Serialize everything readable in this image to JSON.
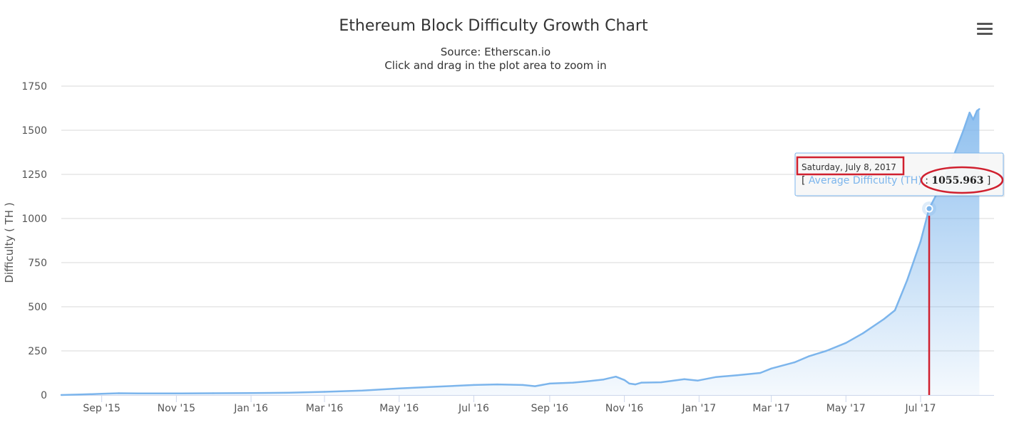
{
  "chart_data": {
    "type": "area",
    "title": "Ethereum Block Difficulty Growth Chart",
    "subtitle_lines": [
      "Source: Etherscan.io",
      "Click and drag in the plot area to zoom in"
    ],
    "ylabel": "Difficulty ( TH )",
    "xlabel": "",
    "x_range": [
      "2015-07-30",
      "2017-08-30"
    ],
    "ylim": [
      0,
      1750
    ],
    "y_ticks": [
      0,
      250,
      500,
      750,
      1000,
      1250,
      1500,
      1750
    ],
    "x_ticks": [
      {
        "date": "2015-09-01",
        "label": "Sep '15"
      },
      {
        "date": "2015-11-01",
        "label": "Nov '15"
      },
      {
        "date": "2016-01-01",
        "label": "Jan '16"
      },
      {
        "date": "2016-03-01",
        "label": "Mar '16"
      },
      {
        "date": "2016-05-01",
        "label": "May '16"
      },
      {
        "date": "2016-07-01",
        "label": "Jul '16"
      },
      {
        "date": "2016-09-01",
        "label": "Sep '16"
      },
      {
        "date": "2016-11-01",
        "label": "Nov '16"
      },
      {
        "date": "2017-01-01",
        "label": "Jan '17"
      },
      {
        "date": "2017-03-01",
        "label": "Mar '17"
      },
      {
        "date": "2017-05-01",
        "label": "May '17"
      },
      {
        "date": "2017-07-01",
        "label": "Jul '17"
      }
    ],
    "grid": true,
    "legend": "none",
    "series": [
      {
        "name": "Average Difficulty (TH)",
        "color": "#7cb5ec",
        "points": [
          [
            "2015-07-30",
            0
          ],
          [
            "2015-08-15",
            3
          ],
          [
            "2015-09-01",
            7
          ],
          [
            "2015-09-15",
            10
          ],
          [
            "2015-10-01",
            9
          ],
          [
            "2015-11-01",
            9
          ],
          [
            "2015-12-01",
            10
          ],
          [
            "2016-01-01",
            11
          ],
          [
            "2016-02-01",
            13
          ],
          [
            "2016-03-01",
            18
          ],
          [
            "2016-04-01",
            25
          ],
          [
            "2016-05-01",
            37
          ],
          [
            "2016-06-01",
            47
          ],
          [
            "2016-07-01",
            57
          ],
          [
            "2016-07-20",
            60
          ],
          [
            "2016-08-10",
            57
          ],
          [
            "2016-08-20",
            50
          ],
          [
            "2016-09-01",
            65
          ],
          [
            "2016-09-20",
            70
          ],
          [
            "2016-10-01",
            77
          ],
          [
            "2016-10-15",
            88
          ],
          [
            "2016-10-25",
            104
          ],
          [
            "2016-11-01",
            85
          ],
          [
            "2016-11-05",
            65
          ],
          [
            "2016-11-10",
            60
          ],
          [
            "2016-11-15",
            70
          ],
          [
            "2016-12-01",
            72
          ],
          [
            "2016-12-20",
            90
          ],
          [
            "2016-12-31",
            82
          ],
          [
            "2017-01-15",
            102
          ],
          [
            "2017-02-01",
            112
          ],
          [
            "2017-02-20",
            125
          ],
          [
            "2017-03-01",
            150
          ],
          [
            "2017-03-20",
            185
          ],
          [
            "2017-04-01",
            220
          ],
          [
            "2017-04-15",
            250
          ],
          [
            "2017-05-01",
            295
          ],
          [
            "2017-05-15",
            350
          ],
          [
            "2017-06-01",
            430
          ],
          [
            "2017-06-10",
            480
          ],
          [
            "2017-06-20",
            650
          ],
          [
            "2017-07-01",
            870
          ],
          [
            "2017-07-08",
            1055.963
          ],
          [
            "2017-07-15",
            1150
          ],
          [
            "2017-07-25",
            1300
          ],
          [
            "2017-08-05",
            1500
          ],
          [
            "2017-08-10",
            1600
          ],
          [
            "2017-08-13",
            1560
          ],
          [
            "2017-08-16",
            1610
          ],
          [
            "2017-08-18",
            1620
          ]
        ]
      }
    ]
  },
  "tooltip": {
    "date": "Saturday, July 8, 2017",
    "open_bracket": "[",
    "series_label": "Average Difficulty (TH)",
    "value": "1055.963",
    "close_bracket": "]",
    "point_date": "2017-07-08",
    "point_value": 1055.963
  },
  "annotation_color": "#d0202f",
  "menu_icon": "hamburger-menu-icon"
}
